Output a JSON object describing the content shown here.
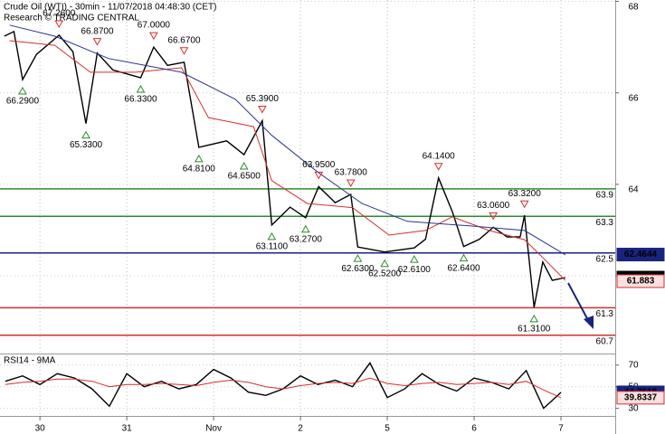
{
  "chart_data": [
    {
      "type": "line",
      "title": "Crude Oil (WTI) - 30min - 11/07/2018 04:48:30 (CET)",
      "subtitle": "Research © TRADING CENTRAL",
      "xlim": [
        -0.46,
        6.625
      ],
      "ylim": [
        60.32,
        68.03
      ],
      "yticks": [
        62,
        64,
        66,
        68
      ],
      "series": [
        {
          "color": "#000000",
          "x": [
            -0.41,
            -0.3,
            -0.2,
            -0.04,
            0.22,
            0.38,
            0.53,
            0.66,
            0.84,
            1.16,
            1.31,
            1.47,
            1.66,
            1.83,
            2.15,
            2.35,
            2.56,
            2.67,
            2.88,
            3.06,
            3.21,
            3.4,
            3.58,
            3.66,
            3.97,
            4.31,
            4.44,
            4.59,
            4.75,
            4.88,
            5.06,
            5.22,
            5.38,
            5.53,
            5.58,
            5.69,
            5.79,
            5.9,
            6.05
          ],
          "values": [
            67.24,
            67.34,
            66.29,
            66.84,
            67.26,
            66.9,
            65.33,
            66.87,
            66.5,
            66.33,
            67.0,
            66.6,
            66.67,
            64.81,
            64.95,
            64.65,
            65.39,
            63.11,
            63.5,
            63.27,
            63.95,
            63.6,
            63.78,
            62.63,
            62.52,
            62.61,
            62.8,
            64.14,
            63.4,
            62.64,
            62.8,
            63.06,
            62.85,
            62.85,
            63.32,
            61.31,
            62.3,
            61.9,
            61.96
          ]
        },
        {
          "color": "#d32f2f",
          "x": [
            -0.35,
            0.17,
            0.58,
            1.1,
            1.63,
            1.94,
            2.46,
            2.67,
            3.08,
            3.6,
            4.02,
            4.44,
            4.75,
            5.17,
            5.58,
            5.79,
            6.05
          ],
          "values": [
            67.14,
            67.04,
            66.45,
            66.45,
            66.55,
            65.46,
            65.26,
            64.08,
            63.58,
            63.49,
            62.89,
            62.99,
            63.29,
            62.99,
            62.79,
            62.4,
            61.9
          ]
        },
        {
          "color": "#283593",
          "x": [
            -0.35,
            0.17,
            0.79,
            1.63,
            2.25,
            2.67,
            3.19,
            3.71,
            4.23,
            4.96,
            5.58,
            6.05
          ],
          "values": [
            67.48,
            67.24,
            66.75,
            66.45,
            65.86,
            65.07,
            64.28,
            63.58,
            63.19,
            63.09,
            62.99,
            62.46
          ]
        }
      ],
      "high_markers": [
        {
          "x": 0.22,
          "value": 67.26,
          "label": "67.2600"
        },
        {
          "x": 0.66,
          "value": 66.87,
          "label": "66.8700"
        },
        {
          "x": 1.31,
          "value": 67.0,
          "label": "67.0000"
        },
        {
          "x": 1.66,
          "value": 66.67,
          "label": "66.6700"
        },
        {
          "x": 2.56,
          "value": 65.39,
          "label": "65.3900"
        },
        {
          "x": 3.21,
          "value": 63.95,
          "label": "63.9500"
        },
        {
          "x": 3.58,
          "value": 63.78,
          "label": "63.7800"
        },
        {
          "x": 4.59,
          "value": 64.14,
          "label": "64.1400"
        },
        {
          "x": 5.22,
          "value": 63.06,
          "label": "63.0600"
        },
        {
          "x": 5.58,
          "value": 63.32,
          "label": "63.3200"
        }
      ],
      "low_markers": [
        {
          "x": -0.2,
          "value": 66.29,
          "label": "66.2900"
        },
        {
          "x": 0.53,
          "value": 65.33,
          "label": "65.3300"
        },
        {
          "x": 1.16,
          "value": 66.33,
          "label": "66.3300"
        },
        {
          "x": 1.83,
          "value": 64.81,
          "label": "64.8100"
        },
        {
          "x": 2.35,
          "value": 64.65,
          "label": "64.6500"
        },
        {
          "x": 2.67,
          "value": 63.11,
          "label": "63.1100"
        },
        {
          "x": 3.06,
          "value": 63.27,
          "label": "63.2700"
        },
        {
          "x": 3.66,
          "value": 62.63,
          "label": "62.6300"
        },
        {
          "x": 3.97,
          "value": 62.52,
          "label": "62.5200"
        },
        {
          "x": 4.31,
          "value": 62.61,
          "label": "62.6100"
        },
        {
          "x": 4.88,
          "value": 62.64,
          "label": "62.6400"
        },
        {
          "x": 5.69,
          "value": 61.31,
          "label": "61.3100"
        }
      ],
      "levels": [
        {
          "value": 63.9,
          "color": "#2e8b2e"
        },
        {
          "value": 63.3,
          "color": "#2e8b2e"
        },
        {
          "value": 62.5,
          "color": "#1a237e"
        },
        {
          "value": 61.3,
          "color": "#d32f2f"
        },
        {
          "value": 60.7,
          "color": "#d32f2f"
        }
      ],
      "price_tags": [
        {
          "value": 62.4644,
          "color": "#1a237e"
        },
        {
          "value": 61.96,
          "color": "#000000"
        },
        {
          "value": 61.883,
          "color": "#d32f2f"
        }
      ]
    },
    {
      "type": "line",
      "title": "RSI14 - 9MA",
      "xlim": [
        -0.46,
        6.625
      ],
      "xticks": [
        {
          "value": 0,
          "label": "30"
        },
        {
          "value": 1,
          "label": "31"
        },
        {
          "value": 2,
          "label": "Nov"
        },
        {
          "value": 3,
          "label": "2"
        },
        {
          "value": 4,
          "label": "5"
        },
        {
          "value": 5,
          "label": "6"
        },
        {
          "value": 6,
          "label": "7"
        }
      ],
      "ylim": [
        23,
        79
      ],
      "yticks": [
        70,
        50,
        30
      ],
      "series": [
        {
          "color": "#000000",
          "x": [
            -0.4,
            -0.2,
            0,
            0.2,
            0.4,
            0.6,
            0.8,
            1.0,
            1.2,
            1.4,
            1.6,
            1.8,
            2.0,
            2.2,
            2.4,
            2.6,
            2.8,
            3.0,
            3.2,
            3.4,
            3.6,
            3.8,
            4.0,
            4.2,
            4.4,
            4.6,
            4.8,
            5.0,
            5.2,
            5.4,
            5.6,
            5.8,
            6.0
          ],
          "values": [
            55,
            60,
            52,
            62,
            58,
            48,
            32,
            62,
            50,
            55,
            48,
            52,
            66,
            58,
            45,
            42,
            48,
            60,
            52,
            56,
            50,
            72,
            40,
            48,
            62,
            52,
            46,
            58,
            54,
            48,
            65,
            30,
            44.7618
          ]
        },
        {
          "color": "#d32f2f",
          "x": [
            -0.4,
            -0.2,
            0,
            0.2,
            0.4,
            0.6,
            0.8,
            1.0,
            1.2,
            1.4,
            1.6,
            1.8,
            2.0,
            2.2,
            2.4,
            2.6,
            2.8,
            3.0,
            3.2,
            3.4,
            3.6,
            3.8,
            4.0,
            4.2,
            4.4,
            4.6,
            4.8,
            5.0,
            5.2,
            5.4,
            5.6,
            5.8,
            6.0
          ],
          "values": [
            52,
            54,
            55,
            57,
            57,
            55,
            50,
            52,
            52,
            53,
            52,
            51,
            54,
            56,
            54,
            50,
            48,
            51,
            53,
            54,
            53,
            58,
            53,
            51,
            53,
            54,
            52,
            53,
            54,
            52,
            55,
            47,
            39.8337
          ]
        }
      ],
      "price_tags": [
        {
          "value": 44.7618,
          "color": "#1a237e"
        },
        {
          "value": 39.8337,
          "color": "#d32f2f"
        }
      ]
    }
  ]
}
